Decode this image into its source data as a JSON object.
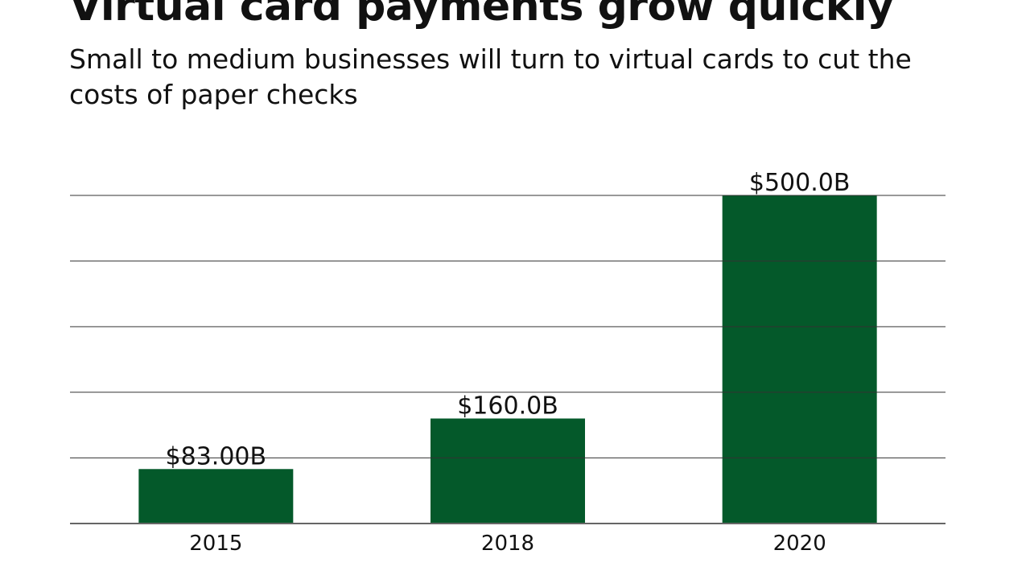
{
  "chart_data": {
    "type": "bar",
    "title": "Virtual card payments grow quickly",
    "subtitle": "Small to medium businesses will turn to virtual cards to cut the costs of paper checks",
    "categories": [
      "2015",
      "2018",
      "2020"
    ],
    "values": [
      83,
      160,
      500
    ],
    "data_labels": [
      "$83.00B",
      "$160.0B",
      "$500.0B"
    ],
    "xlabel": "",
    "ylabel": "",
    "ylim": [
      0,
      500
    ],
    "grid": true,
    "grid_step": 100,
    "bar_color": "#04592a"
  }
}
